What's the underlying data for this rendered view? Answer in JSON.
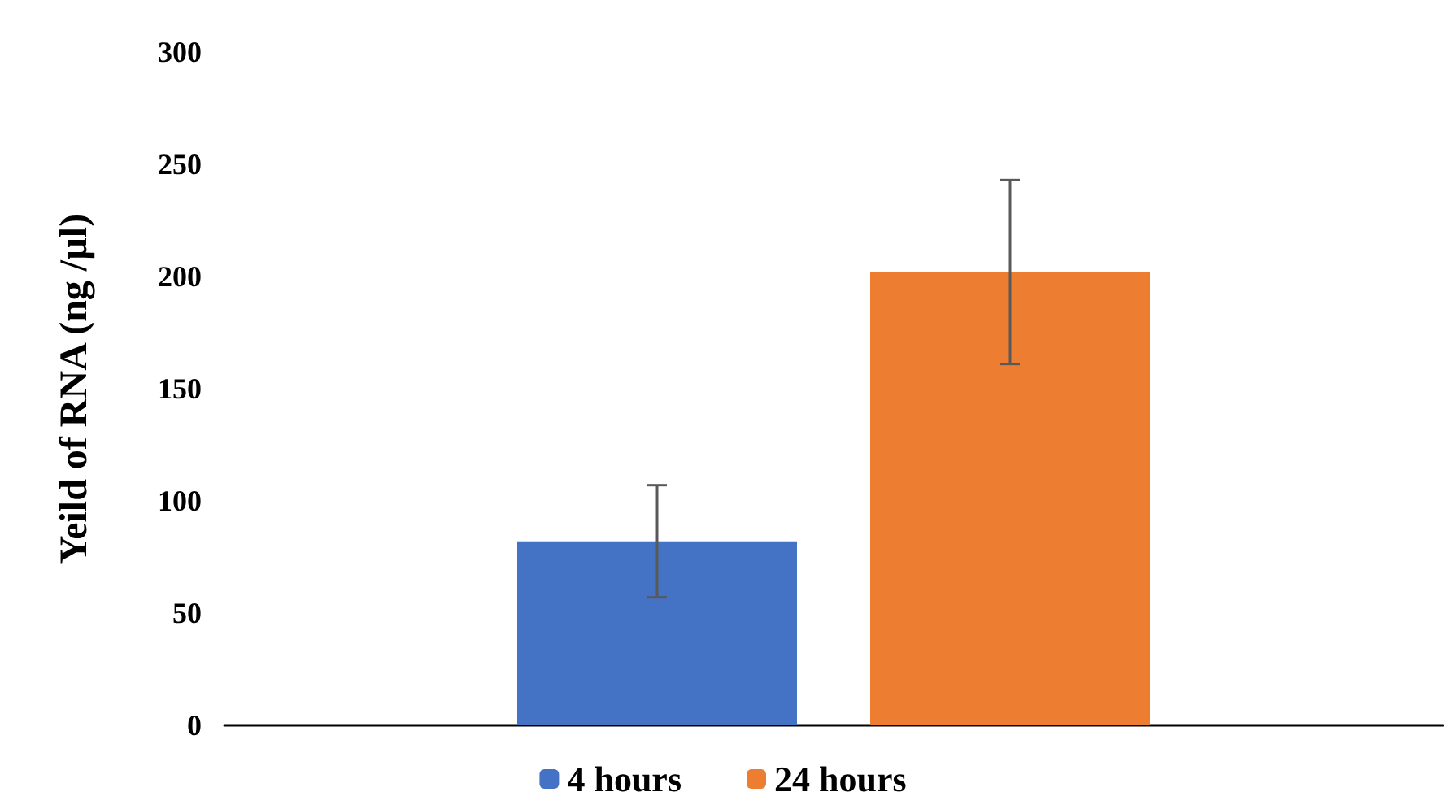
{
  "chart_data": {
    "type": "bar",
    "ylabel": "Yeild of RNA (ng /µl)",
    "categories": [
      null
    ],
    "series": [
      {
        "name": "4 hours",
        "color": "#4472c4",
        "values": [
          82
        ],
        "errors": [
          25
        ]
      },
      {
        "name": "24 hours",
        "color": "#ed7d31",
        "values": [
          202
        ],
        "errors": [
          41
        ]
      }
    ],
    "ylim": [
      0,
      300
    ],
    "yticks": [
      0,
      50,
      100,
      150,
      200,
      250,
      300
    ],
    "grid": false,
    "legend": "bottom"
  }
}
